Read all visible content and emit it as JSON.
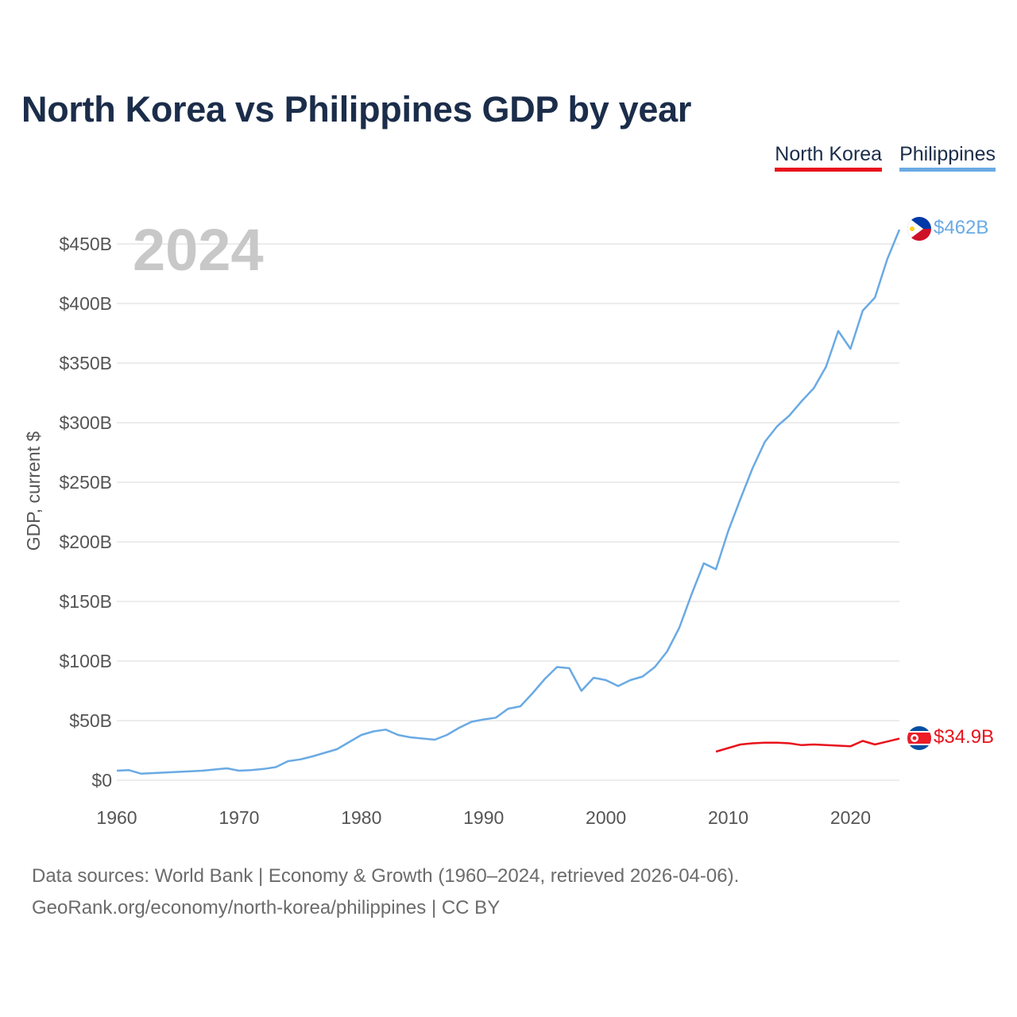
{
  "title": "North Korea vs Philippines GDP by year",
  "legend": {
    "north_korea": "North Korea",
    "philippines": "Philippines"
  },
  "year_watermark": "2024",
  "footer": {
    "line1": "Data sources: World Bank | Economy & Growth (1960–2024, retrieved 2026-04-06).",
    "line2": "GeoRank.org/economy/north-korea/philippines | CC BY"
  },
  "colors": {
    "north_korea": "#e8121c",
    "philippines": "#6aaae4",
    "grid": "#e6e6e6",
    "axis_text": "#555555",
    "title": "#1b2d4a"
  },
  "chart_data": {
    "type": "line",
    "title": "North Korea vs Philippines GDP by year",
    "xlabel": "",
    "ylabel": "GDP, current $",
    "xlim": [
      1960,
      2024
    ],
    "ylim": [
      0,
      450
    ],
    "y_unit": "billions USD",
    "xticks": [
      1960,
      1970,
      1980,
      1990,
      2000,
      2010,
      2020
    ],
    "xtick_labels": [
      "1960",
      "1970",
      "1980",
      "1990",
      "2000",
      "2010",
      "2020"
    ],
    "yticks": [
      0,
      50,
      100,
      150,
      200,
      250,
      300,
      350,
      400,
      450
    ],
    "ytick_labels": [
      "$0",
      "$50B",
      "$100B",
      "$150B",
      "$200B",
      "$250B",
      "$300B",
      "$350B",
      "$400B",
      "$450B"
    ],
    "series": [
      {
        "name": "Philippines",
        "end_label": "$462B",
        "x": [
          1960,
          1961,
          1962,
          1963,
          1964,
          1965,
          1966,
          1967,
          1968,
          1969,
          1970,
          1971,
          1972,
          1973,
          1974,
          1975,
          1976,
          1977,
          1978,
          1979,
          1980,
          1981,
          1982,
          1983,
          1984,
          1985,
          1986,
          1987,
          1988,
          1989,
          1990,
          1991,
          1992,
          1993,
          1994,
          1995,
          1996,
          1997,
          1998,
          1999,
          2000,
          2001,
          2002,
          2003,
          2004,
          2005,
          2006,
          2007,
          2008,
          2009,
          2010,
          2011,
          2012,
          2013,
          2014,
          2015,
          2016,
          2017,
          2018,
          2019,
          2020,
          2021,
          2022,
          2023,
          2024
        ],
        "values": [
          8,
          8.5,
          5.5,
          6,
          6.5,
          7,
          7.5,
          8,
          9,
          10,
          8,
          8.5,
          9.5,
          11,
          16,
          17.5,
          20,
          23,
          26,
          32,
          38,
          41,
          42.5,
          38,
          36,
          35,
          34,
          38,
          44,
          49,
          51,
          52.5,
          60,
          62,
          73,
          85,
          95,
          94,
          75,
          86,
          84,
          79,
          84,
          87,
          95,
          108,
          128,
          156,
          182,
          177,
          209,
          236,
          262,
          284,
          297,
          306,
          318,
          329,
          347,
          377,
          362,
          394,
          405,
          437,
          462
        ]
      },
      {
        "name": "North Korea",
        "end_label": "$34.9B",
        "x": [
          2009,
          2010,
          2011,
          2012,
          2013,
          2014,
          2015,
          2016,
          2017,
          2018,
          2019,
          2020,
          2021,
          2022,
          2023,
          2024
        ],
        "values": [
          24,
          27,
          30,
          31,
          31.5,
          31.5,
          31,
          29.5,
          30,
          29.5,
          29,
          28.5,
          33,
          30,
          32.5,
          34.9
        ]
      }
    ]
  }
}
